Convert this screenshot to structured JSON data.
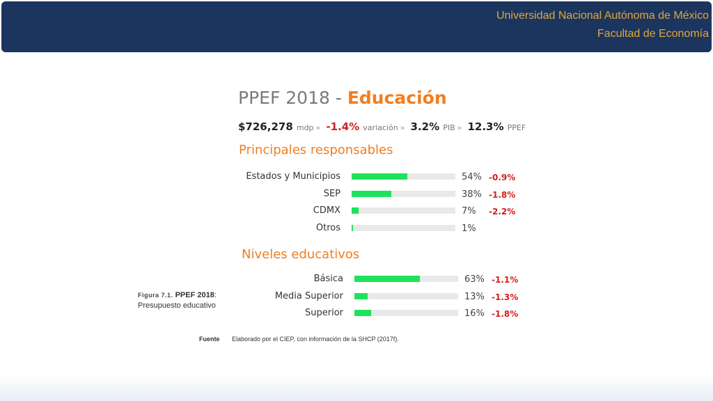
{
  "header": {
    "line1": "Universidad Nacional Autónoma de México",
    "line2": "Facultad de Economía"
  },
  "title": {
    "prefix": "PPEF 2018 - ",
    "accent": "Educación"
  },
  "stats": {
    "amount": "$726,278",
    "amount_unit": "mdp",
    "variation": "-1.4%",
    "variation_label": "variación",
    "pib": "3.2%",
    "pib_label": "PIB",
    "ppef": "12.3%",
    "ppef_label": "PPEF",
    "separator": "»"
  },
  "sections": {
    "responsables": "Principales responsables",
    "niveles": "Niveles educativos"
  },
  "responsables": [
    {
      "label": "Estados y Municipios",
      "share": 54,
      "pct": "54%",
      "var": "-0.9%"
    },
    {
      "label": "SEP",
      "share": 38,
      "pct": "38%",
      "var": "-1.8%"
    },
    {
      "label": "CDMX",
      "share": 7,
      "pct": "7%",
      "var": "-2.2%"
    },
    {
      "label": "Otros",
      "share": 1,
      "pct": "1%",
      "var": ""
    }
  ],
  "niveles": [
    {
      "label": "Básica",
      "share": 63,
      "pct": "63%",
      "var": "-1.1%"
    },
    {
      "label": "Media Superior",
      "share": 13,
      "pct": "13%",
      "var": "-1.3%"
    },
    {
      "label": "Superior",
      "share": 16,
      "pct": "16%",
      "var": "-1.8%"
    }
  ],
  "caption": {
    "figure": "Figura 7.1.",
    "bold": "PPEF 2018",
    "colon": ":",
    "line2": "Presupuesto educativo"
  },
  "source": {
    "label": "Fuente",
    "text": "Elaborado por el CIEP, con información de la SHCP (2017f)."
  },
  "colors": {
    "banner": "#1c355e",
    "header_text": "#e2a53a",
    "accent": "#f07e21",
    "bar": "#1ee35a",
    "negative": "#d41e1e"
  }
}
